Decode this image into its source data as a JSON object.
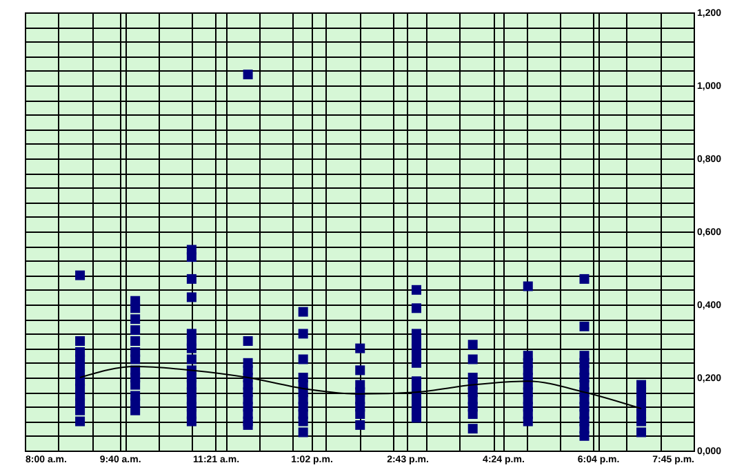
{
  "chart_data": {
    "type": "scatter",
    "marker": "square",
    "grid": true,
    "xlim": [
      8,
      19.75
    ],
    "ylim": [
      0,
      1.2
    ],
    "xticks": [
      {
        "value": 8,
        "label": "8:00 a.m."
      },
      {
        "value": 8.588,
        "label": null
      },
      {
        "value": 9.175,
        "label": null
      },
      {
        "value": 9.667,
        "label": "9:40 a.m."
      },
      {
        "value": 9.763,
        "label": null
      },
      {
        "value": 10.35,
        "label": null
      },
      {
        "value": 10.938,
        "label": null
      },
      {
        "value": 11.35,
        "label": "11:21 a.m."
      },
      {
        "value": 11.525,
        "label": null
      },
      {
        "value": 12.113,
        "label": null
      },
      {
        "value": 12.7,
        "label": null
      },
      {
        "value": 13.033,
        "label": "1:02 p.m."
      },
      {
        "value": 13.288,
        "label": null
      },
      {
        "value": 13.875,
        "label": null
      },
      {
        "value": 14.463,
        "label": null
      },
      {
        "value": 14.717,
        "label": "2:43 p.m."
      },
      {
        "value": 15.05,
        "label": null
      },
      {
        "value": 15.638,
        "label": null
      },
      {
        "value": 16.225,
        "label": null
      },
      {
        "value": 16.4,
        "label": "4:24 p.m."
      },
      {
        "value": 16.813,
        "label": null
      },
      {
        "value": 17.4,
        "label": null
      },
      {
        "value": 17.988,
        "label": null
      },
      {
        "value": 18.067,
        "label": "6:04 p.m."
      },
      {
        "value": 18.575,
        "label": null
      },
      {
        "value": 19.163,
        "label": null
      },
      {
        "value": 19.75,
        "label": "7:45 p.m."
      }
    ],
    "yticks": [
      {
        "value": 0,
        "label": "0,000"
      },
      {
        "value": 0.04,
        "label": null
      },
      {
        "value": 0.08,
        "label": null
      },
      {
        "value": 0.12,
        "label": null
      },
      {
        "value": 0.16,
        "label": null
      },
      {
        "value": 0.2,
        "label": "0,200"
      },
      {
        "value": 0.24,
        "label": null
      },
      {
        "value": 0.28,
        "label": null
      },
      {
        "value": 0.32,
        "label": null
      },
      {
        "value": 0.36,
        "label": null
      },
      {
        "value": 0.4,
        "label": "0,400"
      },
      {
        "value": 0.44,
        "label": null
      },
      {
        "value": 0.48,
        "label": null
      },
      {
        "value": 0.52,
        "label": null
      },
      {
        "value": 0.56,
        "label": null
      },
      {
        "value": 0.6,
        "label": "0,600"
      },
      {
        "value": 0.64,
        "label": null
      },
      {
        "value": 0.68,
        "label": null
      },
      {
        "value": 0.72,
        "label": null
      },
      {
        "value": 0.76,
        "label": null
      },
      {
        "value": 0.8,
        "label": "0,800"
      },
      {
        "value": 0.84,
        "label": null
      },
      {
        "value": 0.88,
        "label": null
      },
      {
        "value": 0.92,
        "label": null
      },
      {
        "value": 0.96,
        "label": null
      },
      {
        "value": 1.0,
        "label": "1,000"
      },
      {
        "value": 1.04,
        "label": null
      },
      {
        "value": 1.08,
        "label": null
      },
      {
        "value": 1.12,
        "label": null
      },
      {
        "value": 1.16,
        "label": null
      },
      {
        "value": 1.2,
        "label": "1,200"
      }
    ],
    "series": [
      {
        "color": "#000080",
        "x": [
          8.97,
          8.97,
          8.97,
          8.97,
          8.97,
          8.97,
          8.97,
          8.97,
          8.97,
          8.97,
          8.97,
          8.97,
          9.94,
          9.94,
          9.94,
          9.94,
          9.94,
          9.94,
          9.94,
          9.94,
          9.94,
          9.94,
          9.94,
          9.94,
          9.94,
          10.93,
          10.93,
          10.93,
          10.93,
          10.93,
          10.93,
          10.93,
          10.93,
          10.93,
          10.93,
          10.93,
          10.93,
          10.93,
          10.93,
          10.93,
          10.93,
          11.92,
          11.92,
          11.92,
          11.92,
          11.92,
          11.92,
          11.92,
          11.92,
          11.92,
          11.92,
          11.92,
          11.92,
          12.89,
          12.89,
          12.89,
          12.89,
          12.89,
          12.89,
          12.89,
          12.89,
          12.89,
          12.89,
          12.89,
          13.89,
          13.89,
          13.89,
          13.89,
          13.89,
          13.89,
          13.89,
          13.89,
          14.88,
          14.88,
          14.88,
          14.88,
          14.88,
          14.88,
          14.88,
          14.88,
          14.88,
          14.88,
          14.88,
          14.88,
          14.88,
          15.87,
          15.87,
          15.87,
          15.87,
          15.87,
          15.87,
          15.87,
          15.87,
          15.87,
          16.84,
          16.84,
          16.84,
          16.84,
          16.84,
          16.84,
          16.84,
          16.84,
          16.84,
          16.84,
          16.84,
          17.83,
          17.83,
          17.83,
          17.83,
          17.83,
          17.83,
          17.83,
          17.83,
          17.83,
          17.83,
          17.83,
          17.83,
          17.83,
          17.83,
          18.83,
          18.83,
          18.83,
          18.83,
          18.83,
          18.83,
          18.83
        ],
        "values": [
          0.48,
          0.3,
          0.27,
          0.25,
          0.23,
          0.21,
          0.19,
          0.17,
          0.15,
          0.13,
          0.11,
          0.08,
          0.41,
          0.39,
          0.36,
          0.33,
          0.3,
          0.27,
          0.25,
          0.22,
          0.2,
          0.18,
          0.15,
          0.13,
          0.11,
          0.55,
          0.53,
          0.47,
          0.42,
          0.32,
          0.3,
          0.28,
          0.25,
          0.22,
          0.2,
          0.18,
          0.16,
          0.14,
          0.12,
          0.1,
          0.08,
          1.03,
          0.3,
          0.24,
          0.22,
          0.2,
          0.18,
          0.16,
          0.14,
          0.12,
          0.1,
          0.08,
          0.07,
          0.38,
          0.32,
          0.25,
          0.2,
          0.18,
          0.16,
          0.14,
          0.12,
          0.1,
          0.08,
          0.05,
          0.28,
          0.22,
          0.18,
          0.16,
          0.14,
          0.12,
          0.1,
          0.07,
          0.44,
          0.39,
          0.32,
          0.3,
          0.28,
          0.26,
          0.24,
          0.19,
          0.17,
          0.15,
          0.13,
          0.11,
          0.09,
          0.29,
          0.25,
          0.2,
          0.18,
          0.16,
          0.14,
          0.12,
          0.1,
          0.06,
          0.45,
          0.26,
          0.24,
          0.22,
          0.2,
          0.18,
          0.16,
          0.14,
          0.12,
          0.1,
          0.08,
          0.47,
          0.34,
          0.26,
          0.24,
          0.22,
          0.2,
          0.18,
          0.16,
          0.14,
          0.12,
          0.1,
          0.08,
          0.06,
          0.04,
          0.18,
          0.16,
          0.14,
          0.12,
          0.1,
          0.08,
          0.05
        ]
      },
      {
        "type": "line",
        "marker": "none",
        "line_style": "solid",
        "color": "#000000",
        "x": [
          8.97,
          9.94,
          10.93,
          11.92,
          12.89,
          13.89,
          14.88,
          15.87,
          16.84,
          17.83,
          18.83
        ],
        "values": [
          0.2,
          0.23,
          0.22,
          0.2,
          0.17,
          0.155,
          0.16,
          0.18,
          0.19,
          0.16,
          0.115
        ]
      }
    ]
  }
}
